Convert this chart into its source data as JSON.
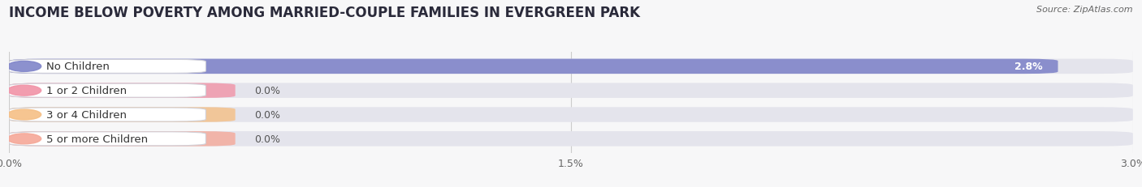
{
  "title": "INCOME BELOW POVERTY AMONG MARRIED-COUPLE FAMILIES IN EVERGREEN PARK",
  "source": "Source: ZipAtlas.com",
  "categories": [
    "No Children",
    "1 or 2 Children",
    "3 or 4 Children",
    "5 or more Children"
  ],
  "values": [
    2.8,
    0.0,
    0.0,
    0.0
  ],
  "bar_colors": [
    "#8085c9",
    "#f193a7",
    "#f5bf85",
    "#f5a898"
  ],
  "background_color": "#f7f7f8",
  "bar_bg_color": "#e4e4ec",
  "xlim_max": 3.0,
  "xticks": [
    0.0,
    1.5,
    3.0
  ],
  "xtick_labels": [
    "0.0%",
    "1.5%",
    "3.0%"
  ],
  "bar_height": 0.62,
  "title_fontsize": 12,
  "label_fontsize": 9.5,
  "value_fontsize": 9
}
